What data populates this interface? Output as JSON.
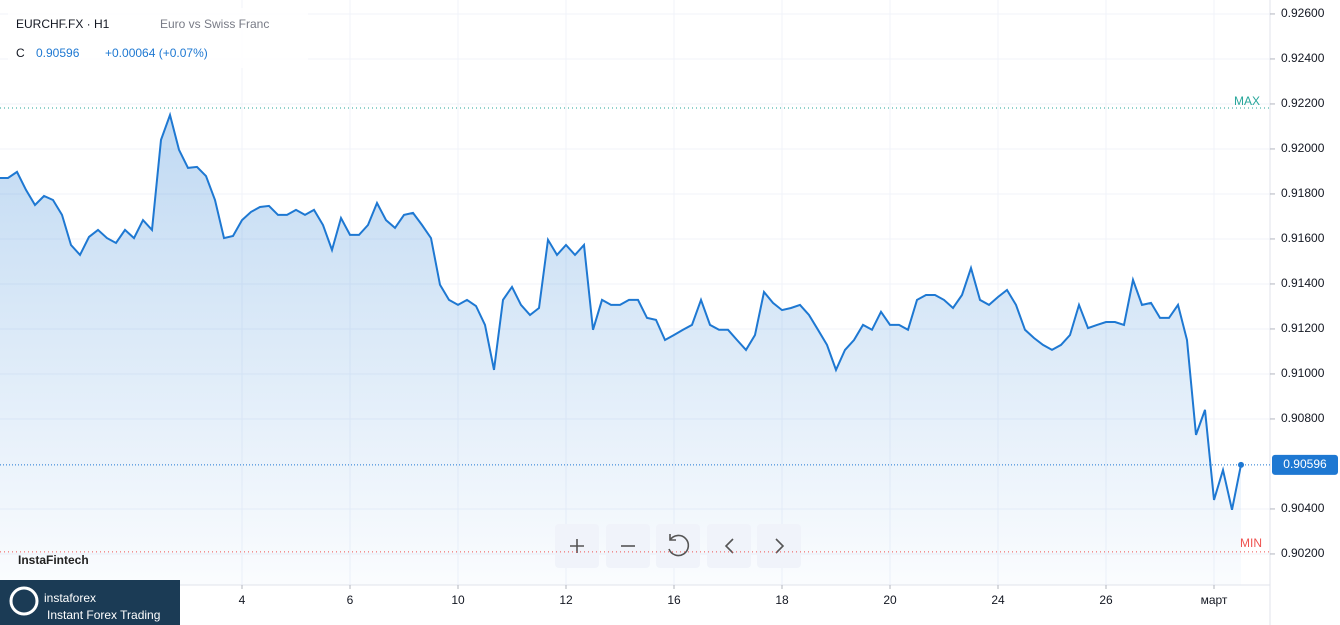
{
  "header": {
    "symbol": "EURCHF.FX · H1",
    "description": "Euro vs Swiss Franc",
    "close_prefix": "C",
    "change": "+0.00064 (+0.07%)"
  },
  "branding": {
    "watermark": "InstaFintech",
    "logo": "instaforex",
    "logo_sub": "Instant Forex Trading"
  },
  "chart_data": {
    "type": "area",
    "color": "#1e78d2",
    "grid": true,
    "xlim": [
      -0.8889,
      140.222
    ],
    "ylim": [
      0.90062,
      0.92662
    ],
    "xticks": [
      {
        "value": 26,
        "label": "4"
      },
      {
        "value": 38,
        "label": "6"
      },
      {
        "value": 50,
        "label": "10"
      },
      {
        "value": 62,
        "label": "12"
      },
      {
        "value": 74,
        "label": "16"
      },
      {
        "value": 86,
        "label": "18"
      },
      {
        "value": 98,
        "label": "20"
      },
      {
        "value": 110,
        "label": "24"
      },
      {
        "value": 122,
        "label": "26"
      },
      {
        "value": 134,
        "label": "март"
      }
    ],
    "yticks": [
      {
        "value": 0.926,
        "label": "0.92600"
      },
      {
        "value": 0.924,
        "label": "0.92400"
      },
      {
        "value": 0.922,
        "label": "0.92200"
      },
      {
        "value": 0.92,
        "label": "0.92000"
      },
      {
        "value": 0.918,
        "label": "0.91800"
      },
      {
        "value": 0.916,
        "label": "0.91600"
      },
      {
        "value": 0.914,
        "label": "0.91400"
      },
      {
        "value": 0.912,
        "label": "0.91200"
      },
      {
        "value": 0.91,
        "label": "0.91000"
      },
      {
        "value": 0.908,
        "label": "0.90800"
      },
      {
        "value": 0.904,
        "label": "0.90400"
      },
      {
        "value": 0.902,
        "label": "0.90200"
      }
    ],
    "max_line": {
      "value": 0.92182,
      "label": "MAX"
    },
    "min_line": {
      "value": 0.90209,
      "label": "MIN"
    },
    "last": {
      "value": 0.90596,
      "label": "0.90596"
    },
    "x": [
      0,
      1,
      2,
      3,
      4,
      5,
      6,
      7,
      8,
      9,
      10,
      11,
      12,
      13,
      14,
      15,
      16,
      17,
      18,
      19,
      20,
      21,
      22,
      23,
      24,
      25,
      26,
      27,
      28,
      29,
      30,
      31,
      32,
      33,
      34,
      35,
      36,
      37,
      38,
      39,
      40,
      41,
      42,
      43,
      44,
      45,
      46,
      47,
      48,
      49,
      50,
      51,
      52,
      53,
      54,
      55,
      56,
      57,
      58,
      59,
      60,
      61,
      62,
      63,
      64,
      65,
      66,
      67,
      68,
      69,
      70,
      71,
      72,
      73,
      74,
      75,
      76,
      77,
      78,
      79,
      80,
      81,
      82,
      83,
      84,
      85,
      86,
      87,
      88,
      89,
      90,
      91,
      92,
      93,
      94,
      95,
      96,
      97,
      98,
      99,
      100,
      101,
      102,
      103,
      104,
      105,
      106,
      107,
      108,
      109,
      110,
      111,
      112,
      113,
      114,
      115,
      116,
      117,
      118,
      119,
      120,
      121,
      122,
      123,
      124,
      125,
      126,
      127,
      128,
      129,
      130,
      131,
      132,
      133,
      134,
      135,
      136,
      137
    ],
    "values": [
      0.91871,
      0.91898,
      0.91818,
      0.91751,
      0.91791,
      0.91773,
      0.91707,
      0.91573,
      0.91529,
      0.91609,
      0.9164,
      0.91604,
      0.91582,
      0.9164,
      0.91604,
      0.91684,
      0.9164,
      0.9204,
      0.92151,
      0.91996,
      0.91916,
      0.9192,
      0.9188,
      0.91773,
      0.91604,
      0.91613,
      0.91684,
      0.9172,
      0.91742,
      0.91747,
      0.91707,
      0.91707,
      0.91729,
      0.91707,
      0.91729,
      0.91662,
      0.91551,
      0.91693,
      0.91618,
      0.91618,
      0.91662,
      0.9176,
      0.91684,
      0.91649,
      0.91707,
      0.91716,
      0.91662,
      0.91604,
      0.91396,
      0.91329,
      0.91307,
      0.91329,
      0.91302,
      0.91218,
      0.91018,
      0.91329,
      0.91387,
      0.91307,
      0.91262,
      0.91293,
      0.91596,
      0.91529,
      0.91573,
      0.91529,
      0.91573,
      0.91196,
      0.91329,
      0.91307,
      0.91307,
      0.91329,
      0.91329,
      0.91249,
      0.9124,
      0.91151,
      0.91173,
      0.91196,
      0.91218,
      0.91329,
      0.91218,
      0.91196,
      0.91196,
      0.91151,
      0.91107,
      0.91173,
      0.91364,
      0.91316,
      0.91284,
      0.91293,
      0.91307,
      0.91262,
      0.91196,
      0.91129,
      0.91018,
      0.91107,
      0.91151,
      0.91218,
      0.91196,
      0.91276,
      0.91218,
      0.91218,
      0.91196,
      0.91329,
      0.91351,
      0.91351,
      0.91329,
      0.91293,
      0.91351,
      0.91471,
      0.91329,
      0.91307,
      0.91342,
      0.91373,
      0.91307,
      0.91196,
      0.9116,
      0.91129,
      0.91107,
      0.91129,
      0.91173,
      0.91307,
      0.91204,
      0.91218,
      0.91231,
      0.91231,
      0.91218,
      0.91418,
      0.91307,
      0.91316,
      0.91249,
      0.91249,
      0.91307,
      0.91151,
      0.90729,
      0.9084,
      0.9044,
      0.90573,
      0.90396,
      0.90596
    ]
  }
}
